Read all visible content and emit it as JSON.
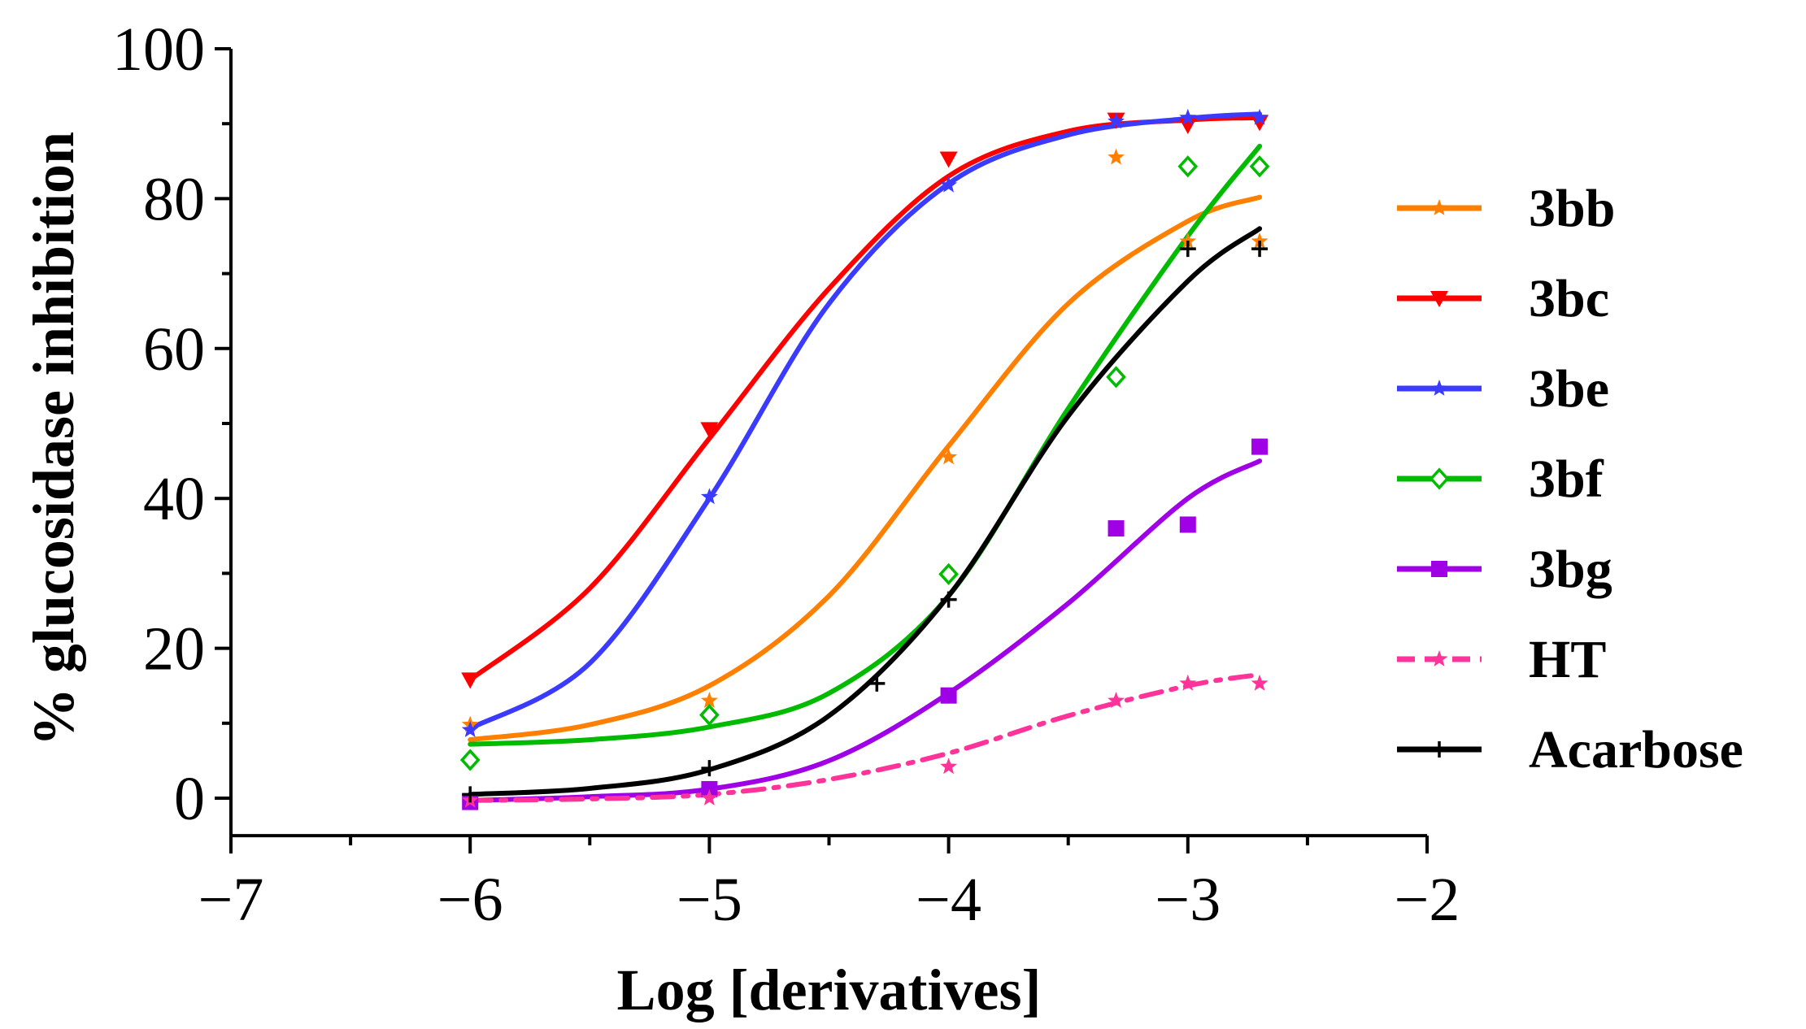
{
  "chart_data": {
    "type": "line",
    "title": "",
    "xlabel": "Log [derivatives]",
    "ylabel": "%  glucosidase inhibition",
    "xlim": [
      -7,
      -2
    ],
    "ylim": [
      -5,
      100
    ],
    "xticks": [
      -7,
      -6,
      -5,
      -4,
      -3,
      -2
    ],
    "xtick_labels": [
      "−7",
      "−6",
      "−5",
      "−4",
      "−3",
      "−2"
    ],
    "yticks": [
      0,
      20,
      40,
      60,
      80,
      100
    ],
    "ytick_labels": [
      "0",
      "20",
      "40",
      "60",
      "80",
      "100"
    ],
    "legend_position": "right",
    "series": [
      {
        "name": "3bb",
        "color": "#ff8000",
        "marker": "star",
        "dash": "solid",
        "points": [
          [
            -6,
            9.8
          ],
          [
            -5,
            13
          ],
          [
            -4,
            45.5
          ],
          [
            -3.3,
            85.5
          ],
          [
            -3,
            74.3
          ],
          [
            -2.7,
            74.3
          ]
        ],
        "curve": [
          [
            -6,
            7.8
          ],
          [
            -5.5,
            9.8
          ],
          [
            -5,
            15
          ],
          [
            -4.5,
            27
          ],
          [
            -4,
            47
          ],
          [
            -3.5,
            66
          ],
          [
            -3,
            77
          ],
          [
            -2.7,
            80.2
          ]
        ]
      },
      {
        "name": "3bc",
        "color": "#ff0000",
        "marker": "triangle-down",
        "dash": "solid",
        "points": [
          [
            -6,
            15.8
          ],
          [
            -5,
            49.2
          ],
          [
            -4,
            85.3
          ],
          [
            -3.3,
            90.5
          ],
          [
            -3,
            89.8
          ],
          [
            -2.7,
            90.2
          ]
        ],
        "curve": [
          [
            -6,
            15.8
          ],
          [
            -5.5,
            28
          ],
          [
            -5,
            48
          ],
          [
            -4.5,
            68
          ],
          [
            -4,
            83
          ],
          [
            -3.5,
            89
          ],
          [
            -3,
            90.5
          ],
          [
            -2.7,
            90.8
          ]
        ]
      },
      {
        "name": "3be",
        "color": "#3b3bff",
        "marker": "star",
        "dash": "solid",
        "points": [
          [
            -6,
            9.1
          ],
          [
            -5,
            40.2
          ],
          [
            -4,
            81.8
          ],
          [
            -3.3,
            90.3
          ],
          [
            -3,
            90.8
          ],
          [
            -2.7,
            90.8
          ]
        ],
        "curve": [
          [
            -6,
            9.3
          ],
          [
            -5.5,
            18
          ],
          [
            -5,
            40
          ],
          [
            -4.5,
            66
          ],
          [
            -4,
            82
          ],
          [
            -3.5,
            88.5
          ],
          [
            -3,
            90.7
          ],
          [
            -2.7,
            91.3
          ]
        ]
      },
      {
        "name": "3bf",
        "color": "#00bb00",
        "marker": "diamond-open",
        "dash": "solid",
        "points": [
          [
            -6,
            5.1
          ],
          [
            -5,
            11.1
          ],
          [
            -4,
            29.9
          ],
          [
            -3.3,
            56.2
          ],
          [
            -3,
            84.3
          ],
          [
            -2.7,
            84.3
          ]
        ],
        "curve": [
          [
            -6,
            7.2
          ],
          [
            -5.5,
            7.8
          ],
          [
            -5,
            9.5
          ],
          [
            -4.5,
            14
          ],
          [
            -4,
            27
          ],
          [
            -3.5,
            52
          ],
          [
            -3,
            75
          ],
          [
            -2.7,
            87
          ]
        ]
      },
      {
        "name": "3bg",
        "color": "#a000e6",
        "marker": "square",
        "dash": "solid",
        "points": [
          [
            -6,
            -0.5
          ],
          [
            -5,
            1.2
          ],
          [
            -4,
            13.7
          ],
          [
            -3.3,
            36
          ],
          [
            -3,
            36.5
          ],
          [
            -2.7,
            46.9
          ]
        ],
        "curve": [
          [
            -6,
            -0.3
          ],
          [
            -5.5,
            0.2
          ],
          [
            -5,
            1.2
          ],
          [
            -4.5,
            5
          ],
          [
            -4,
            14
          ],
          [
            -3.5,
            26
          ],
          [
            -3,
            40
          ],
          [
            -2.7,
            45
          ]
        ]
      },
      {
        "name": "HT",
        "color": "#ff3399",
        "marker": "star",
        "dash": "dashdot",
        "points": [
          [
            -6,
            -0.3
          ],
          [
            -5,
            0
          ],
          [
            -4,
            4.2
          ],
          [
            -3.3,
            13
          ],
          [
            -3,
            15.3
          ],
          [
            -2.7,
            15.3
          ]
        ],
        "curve": [
          [
            -6,
            -0.3
          ],
          [
            -5.5,
            -0.1
          ],
          [
            -5,
            0.5
          ],
          [
            -4.5,
            2.5
          ],
          [
            -4,
            6
          ],
          [
            -3.5,
            11
          ],
          [
            -3,
            15
          ],
          [
            -2.7,
            16.5
          ]
        ]
      },
      {
        "name": "Acarbose",
        "color": "#000000",
        "marker": "plus",
        "dash": "solid",
        "points": [
          [
            -6,
            0.5
          ],
          [
            -5,
            4
          ],
          [
            -4.3,
            15.3
          ],
          [
            -4,
            26.5
          ],
          [
            -3,
            73.3
          ],
          [
            -2.7,
            73.3
          ]
        ],
        "curve": [
          [
            -6,
            0.5
          ],
          [
            -5.5,
            1.3
          ],
          [
            -5,
            3.8
          ],
          [
            -4.5,
            11
          ],
          [
            -4,
            27
          ],
          [
            -3.5,
            51
          ],
          [
            -3,
            69
          ],
          [
            -2.7,
            76
          ]
        ]
      }
    ]
  }
}
